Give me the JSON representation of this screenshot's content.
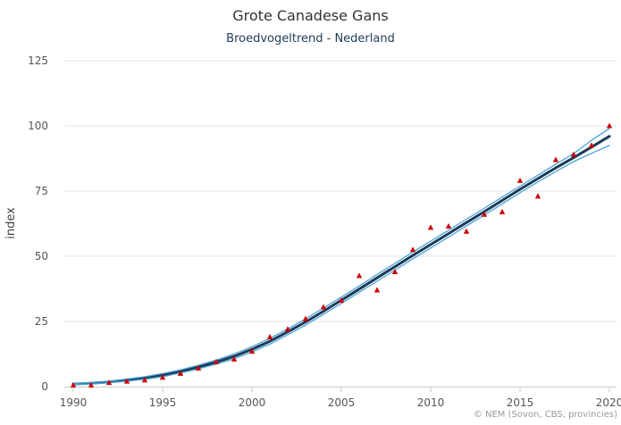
{
  "chart_data": {
    "type": "line",
    "title": "Grote Canadese Gans",
    "subtitle": "Broedvogeltrend - Nederland",
    "ylabel": "index",
    "xlabel": "",
    "credit": "© NEM (Sovon, CBS, provincies)",
    "xlim": [
      1990,
      2020
    ],
    "ylim": [
      0,
      125
    ],
    "x_ticks": [
      1990,
      1995,
      2000,
      2005,
      2010,
      2015,
      2020
    ],
    "y_ticks": [
      0,
      25,
      50,
      75,
      100,
      125
    ],
    "grid": true,
    "colors": {
      "trend": "#1b3a57",
      "confidence": "#4aa3d9",
      "observed": "#cc0000"
    },
    "series": [
      {
        "type": "line",
        "role": "trend",
        "x": [
          1990,
          1991,
          1992,
          1993,
          1994,
          1995,
          1996,
          1997,
          1998,
          1999,
          2000,
          2001,
          2002,
          2003,
          2004,
          2005,
          2006,
          2007,
          2008,
          2009,
          2010,
          2011,
          2012,
          2013,
          2014,
          2015,
          2016,
          2017,
          2018,
          2019,
          2020
        ],
        "values": [
          1,
          1.3,
          1.8,
          2.5,
          3.3,
          4.4,
          5.8,
          7.5,
          9.4,
          11.6,
          14.3,
          17.4,
          21,
          24.8,
          28.9,
          33.1,
          37.4,
          41.7,
          46,
          50.3,
          54.5,
          58.7,
          62.9,
          67.1,
          71.4,
          75.7,
          79.8,
          83.9,
          87.8,
          91.9,
          96
        ]
      },
      {
        "type": "line",
        "role": "upper",
        "x": [
          1990,
          1991,
          1992,
          1993,
          1994,
          1995,
          1996,
          1997,
          1998,
          1999,
          2000,
          2001,
          2002,
          2003,
          2004,
          2005,
          2006,
          2007,
          2008,
          2009,
          2010,
          2011,
          2012,
          2013,
          2014,
          2015,
          2016,
          2017,
          2018,
          2019,
          2020
        ],
        "values": [
          1.2,
          1.6,
          2.1,
          2.9,
          3.8,
          5,
          6.4,
          8.2,
          10.2,
          12.5,
          15.3,
          18.5,
          22.1,
          26,
          30.1,
          34.3,
          38.6,
          43,
          47.3,
          51.6,
          55.8,
          60,
          64.2,
          68.4,
          72.7,
          76.9,
          81.1,
          85.3,
          89.4,
          94.5,
          99
        ]
      },
      {
        "type": "line",
        "role": "lower",
        "x": [
          1990,
          1991,
          1992,
          1993,
          1994,
          1995,
          1996,
          1997,
          1998,
          1999,
          2000,
          2001,
          2002,
          2003,
          2004,
          2005,
          2006,
          2007,
          2008,
          2009,
          2010,
          2011,
          2012,
          2013,
          2014,
          2015,
          2016,
          2017,
          2018,
          2019,
          2020
        ],
        "values": [
          0.8,
          1,
          1.5,
          2.1,
          2.8,
          3.8,
          5.2,
          6.8,
          8.6,
          10.7,
          13.3,
          16.3,
          19.9,
          23.6,
          27.7,
          31.9,
          36.2,
          40.4,
          44.7,
          49,
          53.2,
          57.4,
          61.6,
          65.8,
          70.1,
          74.4,
          78.5,
          82.5,
          86.3,
          89.5,
          92.5
        ]
      },
      {
        "type": "scatter",
        "role": "observed",
        "x": [
          1990,
          1991,
          1992,
          1993,
          1994,
          1995,
          1996,
          1997,
          1998,
          1999,
          2000,
          2001,
          2002,
          2003,
          2004,
          2005,
          2006,
          2007,
          2008,
          2009,
          2010,
          2011,
          2012,
          2013,
          2014,
          2015,
          2016,
          2017,
          2018,
          2019,
          2020
        ],
        "values": [
          0.5,
          0.5,
          1.5,
          2,
          2.5,
          3.5,
          5,
          7,
          9.5,
          10.5,
          13.5,
          19,
          22,
          26,
          30.5,
          33,
          42.5,
          37,
          44,
          52.5,
          61,
          61.5,
          59.5,
          66,
          67,
          79,
          73,
          87,
          89,
          92.5,
          100
        ]
      }
    ]
  }
}
